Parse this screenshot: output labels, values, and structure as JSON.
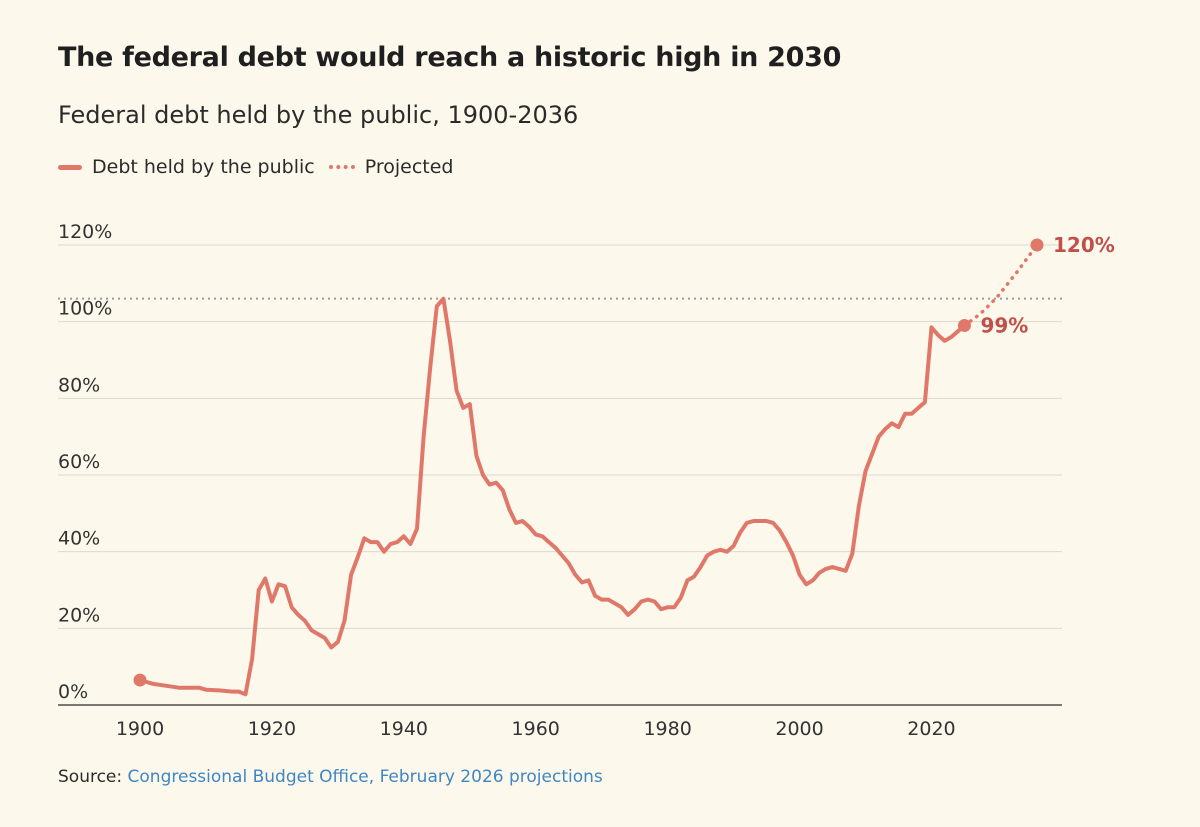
{
  "colors": {
    "line": "#e0786a",
    "label": "#c0504a",
    "grid": "#dcdad0",
    "reference": "#9a9a9a",
    "link": "#3f86c4"
  },
  "title": "The federal debt would reach a historic high in 2030",
  "subtitle": "Federal debt held by the public, 1900-2036",
  "legend": {
    "actual_label": "Debt held by the public",
    "projected_label": "Projected"
  },
  "source": {
    "prefix": "Source:",
    "link_text": "Congressional Budget Office, February 2026 projections"
  },
  "chart_data": {
    "type": "line",
    "xlim": [
      1900,
      2036
    ],
    "ylim": [
      0,
      120
    ],
    "x_ticks": [
      1900,
      1920,
      1940,
      1960,
      1980,
      2000,
      2020
    ],
    "x_tick_labels": [
      "1900",
      "1920",
      "1940",
      "1960",
      "1980",
      "2000",
      "2020"
    ],
    "y_ticks": [
      0,
      20,
      40,
      60,
      80,
      100,
      120
    ],
    "y_tick_labels": [
      "0%",
      "20%",
      "40%",
      "60%",
      "80%",
      "100%",
      "120%"
    ],
    "grid": true,
    "reference_line": {
      "y": 106,
      "style": "dotted"
    },
    "series": [
      {
        "name": "Debt held by the public",
        "style": "solid",
        "points": [
          [
            1900,
            6.5
          ],
          [
            1902,
            5.5
          ],
          [
            1904,
            5
          ],
          [
            1906,
            4.5
          ],
          [
            1908,
            4.5
          ],
          [
            1909,
            4.5
          ],
          [
            1910,
            4
          ],
          [
            1912,
            3.8
          ],
          [
            1914,
            3.5
          ],
          [
            1915,
            3.5
          ],
          [
            1916,
            2.8
          ],
          [
            1917,
            12
          ],
          [
            1918,
            30
          ],
          [
            1919,
            33
          ],
          [
            1920,
            27
          ],
          [
            1921,
            31.5
          ],
          [
            1922,
            31
          ],
          [
            1923,
            25.5
          ],
          [
            1924,
            23.5
          ],
          [
            1925,
            22
          ],
          [
            1926,
            19.5
          ],
          [
            1927,
            18.5
          ],
          [
            1928,
            17.5
          ],
          [
            1929,
            15
          ],
          [
            1930,
            16.5
          ],
          [
            1931,
            22
          ],
          [
            1932,
            34
          ],
          [
            1933,
            38.5
          ],
          [
            1934,
            43.5
          ],
          [
            1935,
            42.5
          ],
          [
            1936,
            42.5
          ],
          [
            1937,
            40
          ],
          [
            1938,
            42
          ],
          [
            1939,
            42.5
          ],
          [
            1940,
            44
          ],
          [
            1941,
            42
          ],
          [
            1942,
            46
          ],
          [
            1943,
            70
          ],
          [
            1944,
            88
          ],
          [
            1945,
            104
          ],
          [
            1946,
            106
          ],
          [
            1947,
            95
          ],
          [
            1948,
            82
          ],
          [
            1949,
            77.5
          ],
          [
            1950,
            78.5
          ],
          [
            1951,
            65
          ],
          [
            1952,
            60
          ],
          [
            1953,
            57.5
          ],
          [
            1954,
            58
          ],
          [
            1955,
            56
          ],
          [
            1956,
            51
          ],
          [
            1957,
            47.5
          ],
          [
            1958,
            48
          ],
          [
            1959,
            46.5
          ],
          [
            1960,
            44.5
          ],
          [
            1961,
            44
          ],
          [
            1962,
            42.5
          ],
          [
            1963,
            41
          ],
          [
            1964,
            39
          ],
          [
            1965,
            37
          ],
          [
            1966,
            34
          ],
          [
            1967,
            32
          ],
          [
            1968,
            32.5
          ],
          [
            1969,
            28.5
          ],
          [
            1970,
            27.5
          ],
          [
            1971,
            27.5
          ],
          [
            1972,
            26.5
          ],
          [
            1973,
            25.5
          ],
          [
            1974,
            23.5
          ],
          [
            1975,
            25
          ],
          [
            1976,
            27
          ],
          [
            1977,
            27.5
          ],
          [
            1978,
            27
          ],
          [
            1979,
            25
          ],
          [
            1980,
            25.5
          ],
          [
            1981,
            25.5
          ],
          [
            1982,
            28
          ],
          [
            1983,
            32.5
          ],
          [
            1984,
            33.5
          ],
          [
            1985,
            36
          ],
          [
            1986,
            39
          ],
          [
            1987,
            40
          ],
          [
            1988,
            40.5
          ],
          [
            1989,
            40
          ],
          [
            1990,
            41.5
          ],
          [
            1991,
            45
          ],
          [
            1992,
            47.5
          ],
          [
            1993,
            48
          ],
          [
            1994,
            48
          ],
          [
            1995,
            48
          ],
          [
            1996,
            47.5
          ],
          [
            1997,
            45.5
          ],
          [
            1998,
            42.5
          ],
          [
            1999,
            39
          ],
          [
            2000,
            34
          ],
          [
            2001,
            31.5
          ],
          [
            2002,
            32.5
          ],
          [
            2003,
            34.5
          ],
          [
            2004,
            35.5
          ],
          [
            2005,
            36
          ],
          [
            2006,
            35.5
          ],
          [
            2007,
            35
          ],
          [
            2008,
            39.5
          ],
          [
            2009,
            52
          ],
          [
            2010,
            61
          ],
          [
            2011,
            65.5
          ],
          [
            2012,
            70
          ],
          [
            2013,
            72
          ],
          [
            2014,
            73.5
          ],
          [
            2015,
            72.5
          ],
          [
            2016,
            76
          ],
          [
            2017,
            76
          ],
          [
            2018,
            77.5
          ],
          [
            2019,
            79
          ],
          [
            2020,
            98.5
          ],
          [
            2021,
            96.5
          ],
          [
            2022,
            95
          ],
          [
            2023,
            96
          ],
          [
            2024,
            97.5
          ],
          [
            2025,
            99
          ]
        ]
      },
      {
        "name": "Projected",
        "style": "dotted",
        "points": [
          [
            2025,
            99
          ],
          [
            2027,
            101.5
          ],
          [
            2028,
            103
          ],
          [
            2030,
            106.5
          ],
          [
            2033,
            113
          ],
          [
            2036,
            120
          ]
        ]
      }
    ],
    "markers": [
      {
        "x": 1900,
        "y": 6.5
      },
      {
        "x": 2025,
        "y": 99,
        "label": "99%"
      },
      {
        "x": 2036,
        "y": 120,
        "label": "120%"
      }
    ]
  }
}
